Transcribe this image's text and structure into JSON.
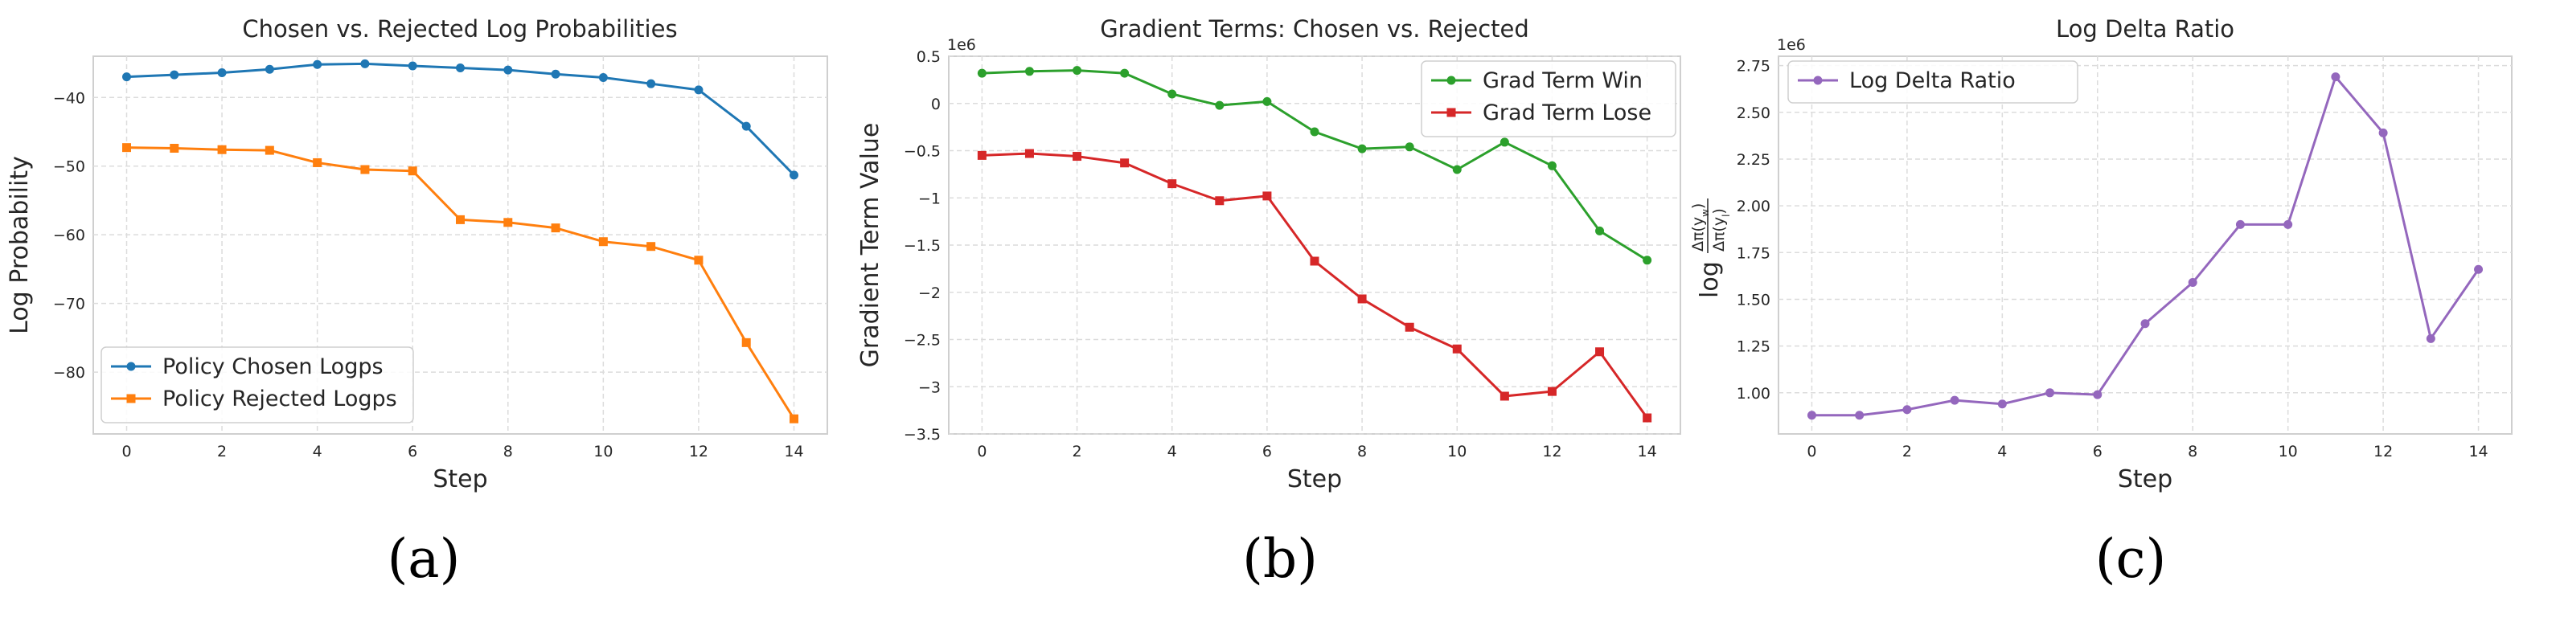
{
  "chart_data": [
    {
      "type": "line",
      "title": "Chosen vs. Rejected Log Probabilities",
      "xlabel": "Step",
      "ylabel": "Log Probability",
      "panel_label": "(a)",
      "x": [
        0,
        1,
        2,
        3,
        4,
        5,
        6,
        7,
        8,
        9,
        10,
        11,
        12,
        13,
        14
      ],
      "xlim": [
        -0.7,
        14.7
      ],
      "ylim": [
        -89,
        -34
      ],
      "xticks": [
        0,
        2,
        4,
        6,
        8,
        10,
        12,
        14
      ],
      "yticks": [
        -80,
        -70,
        -60,
        -50,
        -40
      ],
      "grid": true,
      "legend_position": "lower-left",
      "series": [
        {
          "name": "Policy Chosen Logps",
          "color": "#1f77b4",
          "marker": "circle",
          "values": [
            -37.0,
            -36.7,
            -36.4,
            -35.9,
            -35.2,
            -35.1,
            -35.4,
            -35.7,
            -36.0,
            -36.6,
            -37.1,
            -38.0,
            -38.9,
            -44.2,
            -51.3
          ]
        },
        {
          "name": "Policy Rejected Logps",
          "color": "#ff7f0e",
          "marker": "square",
          "values": [
            -47.3,
            -47.4,
            -47.6,
            -47.7,
            -49.5,
            -50.5,
            -50.7,
            -57.8,
            -58.2,
            -59.0,
            -61.0,
            -61.7,
            -63.7,
            -75.7,
            -86.8
          ]
        }
      ]
    },
    {
      "type": "line",
      "title": "Gradient Terms: Chosen vs. Rejected",
      "xlabel": "Step",
      "ylabel": "Gradient Term Value",
      "offset_label": "1e6",
      "panel_label": "(b)",
      "x": [
        0,
        1,
        2,
        3,
        4,
        5,
        6,
        7,
        8,
        9,
        10,
        11,
        12,
        13,
        14
      ],
      "xlim": [
        -0.7,
        14.7
      ],
      "ylim": [
        -3.5,
        0.5
      ],
      "xticks": [
        0,
        2,
        4,
        6,
        8,
        10,
        12,
        14
      ],
      "yticks": [
        -3.5,
        -3.0,
        -2.5,
        -2.0,
        -1.5,
        -1.0,
        -0.5,
        0.0,
        0.5
      ],
      "grid": true,
      "legend_position": "upper-right",
      "series": [
        {
          "name": "Grad Term Win",
          "color": "#2ca02c",
          "marker": "circle",
          "values": [
            0.32,
            0.34,
            0.35,
            0.32,
            0.1,
            -0.02,
            0.02,
            -0.3,
            -0.48,
            -0.46,
            -0.7,
            -0.41,
            -0.66,
            -1.35,
            -1.66
          ]
        },
        {
          "name": "Grad Term Lose",
          "color": "#d62728",
          "marker": "square",
          "values": [
            -0.55,
            -0.53,
            -0.56,
            -0.63,
            -0.85,
            -1.03,
            -0.98,
            -1.67,
            -2.07,
            -2.37,
            -2.6,
            -3.1,
            -3.05,
            -2.63,
            -3.33
          ]
        }
      ]
    },
    {
      "type": "line",
      "title": "Log Delta Ratio",
      "xlabel": "Step",
      "ylabel": "log Δπ(y_w) / Δπ(y_l)",
      "ylabel_parts": {
        "prefix": "log",
        "numerator": "Δπ(y",
        "numerator_sub": "w",
        "denominator": "Δπ(y",
        "denominator_sub": "l"
      },
      "offset_label": "1e6",
      "panel_label": "(c)",
      "x": [
        0,
        1,
        2,
        3,
        4,
        5,
        6,
        7,
        8,
        9,
        10,
        11,
        12,
        13,
        14
      ],
      "xlim": [
        -0.7,
        14.7
      ],
      "ylim": [
        0.78,
        2.8
      ],
      "xticks": [
        0,
        2,
        4,
        6,
        8,
        10,
        12,
        14
      ],
      "yticks": [
        1.0,
        1.25,
        1.5,
        1.75,
        2.0,
        2.25,
        2.5,
        2.75
      ],
      "ytick_labels": [
        "1.00",
        "1.25",
        "1.50",
        "1.75",
        "2.00",
        "2.25",
        "2.50",
        "2.75"
      ],
      "grid": true,
      "legend_position": "upper-left",
      "series": [
        {
          "name": "Log Delta Ratio",
          "color": "#9467bd",
          "marker": "circle",
          "values": [
            0.88,
            0.88,
            0.91,
            0.96,
            0.94,
            1.0,
            0.99,
            1.37,
            1.59,
            1.9,
            1.9,
            2.69,
            2.39,
            1.29,
            1.66
          ]
        }
      ]
    }
  ]
}
